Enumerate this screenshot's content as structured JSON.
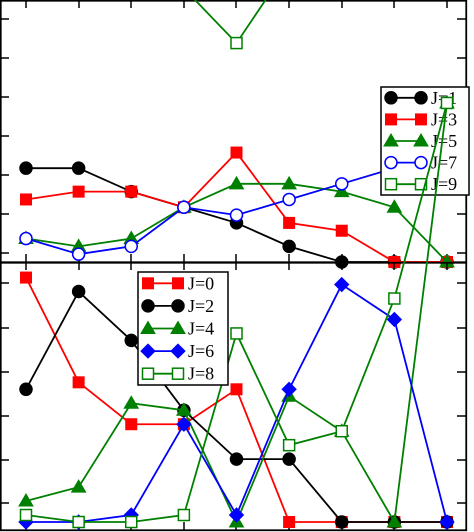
{
  "chart_data": [
    {
      "type": "line",
      "panel": "top",
      "x": [
        1,
        2,
        3,
        4,
        5,
        6,
        7,
        8,
        9
      ],
      "grid": false,
      "legend_position": "right",
      "series": [
        {
          "name": "J=1",
          "color": "#000000",
          "marker": "circle-filled",
          "values": [
            0.12,
            0.12,
            0.09,
            0.07,
            0.05,
            0.02,
            0.0,
            0.0,
            0.0
          ]
        },
        {
          "name": "J=3",
          "color": "#ff0000",
          "marker": "square-filled",
          "values": [
            0.08,
            0.09,
            0.09,
            0.07,
            0.14,
            0.05,
            0.04,
            0.0,
            0.0
          ]
        },
        {
          "name": "J=5",
          "color": "#008000",
          "marker": "triangle-filled",
          "values": [
            0.03,
            0.02,
            0.03,
            0.07,
            0.1,
            0.1,
            0.09,
            0.07,
            0.0
          ]
        },
        {
          "name": "J=7",
          "color": "#0000ff",
          "marker": "circle-open",
          "values": [
            0.03,
            0.01,
            0.02,
            0.07,
            0.06,
            0.08,
            0.1,
            0.12,
            0.11
          ]
        },
        {
          "name": "J=9",
          "color": "#008000",
          "marker": "square-open",
          "values": [
            0.38,
            0.4,
            0.39,
            0.35,
            0.28,
            0.38,
            0.42,
            0.46,
            0.52
          ]
        }
      ]
    },
    {
      "type": "line",
      "panel": "bottom",
      "x": [
        1,
        2,
        3,
        4,
        5,
        6,
        7,
        8,
        9
      ],
      "grid": false,
      "legend_position": "top-center",
      "series": [
        {
          "name": "J=0",
          "color": "#ff0000",
          "marker": "square-filled",
          "values": [
            0.35,
            0.2,
            0.14,
            0.14,
            0.19,
            0.0,
            0.0,
            0.0,
            0.0
          ]
        },
        {
          "name": "J=2",
          "color": "#000000",
          "marker": "circle-filled",
          "values": [
            0.19,
            0.33,
            0.26,
            0.16,
            0.09,
            0.09,
            0.0,
            0.0,
            0.0
          ]
        },
        {
          "name": "J=4",
          "color": "#008000",
          "marker": "triangle-filled",
          "values": [
            0.03,
            0.05,
            0.17,
            0.16,
            0.0,
            0.18,
            0.13,
            0.0,
            0.6
          ]
        },
        {
          "name": "J=6",
          "color": "#0000ff",
          "marker": "diamond-filled",
          "values": [
            0.0,
            0.0,
            0.01,
            0.14,
            0.01,
            0.19,
            0.34,
            0.29,
            0.0
          ]
        },
        {
          "name": "J=8",
          "color": "#008000",
          "marker": "square-open",
          "values": [
            0.01,
            0.0,
            0.0,
            0.01,
            0.27,
            0.11,
            0.13,
            0.32,
            0.6
          ]
        }
      ]
    }
  ]
}
